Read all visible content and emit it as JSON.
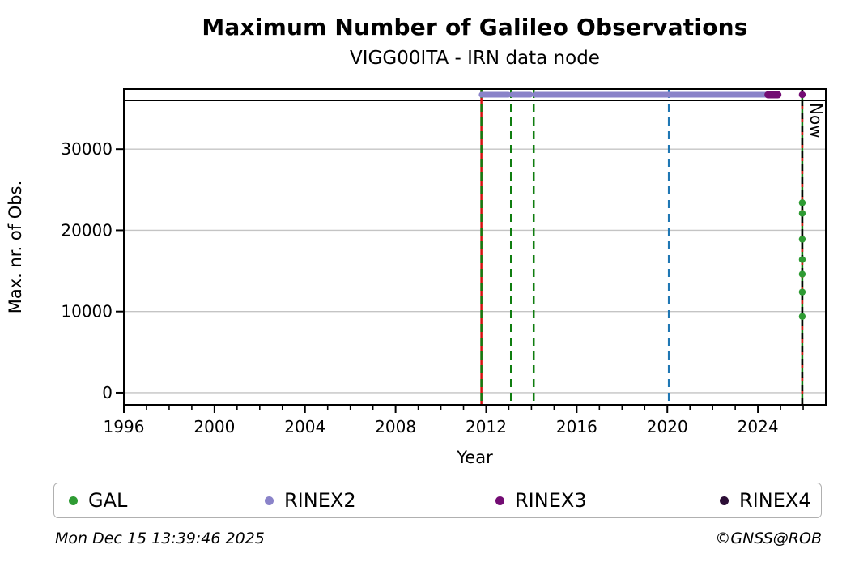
{
  "figure": {
    "title": "Maximum Number of Galileo Observations",
    "subtitle": "VIGG00ITA - IRN data node",
    "footer_left": "Mon Dec 15 13:39:46 2025",
    "footer_right": "©GNSS@ROB"
  },
  "legend": {
    "items": [
      {
        "label": "GAL",
        "color": "#2e9b33"
      },
      {
        "label": "RINEX2",
        "color": "#8a83c9"
      },
      {
        "label": "RINEX3",
        "color": "#730c73"
      },
      {
        "label": "RINEX4",
        "color": "#2c0e36"
      }
    ]
  },
  "chart_data": {
    "type": "scatter",
    "title": "Maximum Number of Galileo Observations",
    "subtitle": "VIGG00ITA - IRN data node",
    "xlabel": "Year",
    "ylabel": "Max. nr. of Obs.",
    "xlim": [
      1996,
      2027
    ],
    "ylim": [
      -1500,
      37400
    ],
    "xticks_major": [
      1996,
      2000,
      2004,
      2008,
      2012,
      2016,
      2020,
      2024
    ],
    "xticks_minor_step": 1,
    "yticks": [
      0,
      10000,
      20000,
      30000
    ],
    "grid": "horizontal-only",
    "grid_color": "#c4c4c4",
    "hline": {
      "value": 36000,
      "color": "#000000"
    },
    "vlines": [
      {
        "x": 2011.79,
        "style": "dashed",
        "colors": [
          "#d61111",
          "#0f7d0f"
        ]
      },
      {
        "x": 2013.1,
        "style": "dashed",
        "colors": [
          "#0f7d0f"
        ]
      },
      {
        "x": 2014.1,
        "style": "dashed",
        "colors": [
          "#0f7d0f"
        ]
      },
      {
        "x": 2020.07,
        "style": "dashed",
        "colors": [
          "#1f77b4"
        ]
      },
      {
        "x": 2025.96,
        "style": "dashed",
        "colors": [
          "#0f7d0f",
          "#d61111",
          "#000000"
        ],
        "label": "Now"
      }
    ],
    "now_label": "Now",
    "series": [
      {
        "name": "GAL",
        "color": "#2e9b33",
        "points": [
          [
            2025.96,
            23400
          ],
          [
            2025.96,
            22100
          ],
          [
            2025.96,
            18900
          ],
          [
            2025.96,
            16400
          ],
          [
            2025.96,
            14600
          ],
          [
            2025.96,
            12400
          ],
          [
            2025.96,
            9400
          ]
        ]
      },
      {
        "name": "RINEX2",
        "color": "#8a83c9",
        "band_value": 36700,
        "band_segments": [
          [
            2011.8,
            2012.98
          ],
          [
            2013.16,
            2013.95
          ],
          [
            2014.16,
            2024.42
          ]
        ]
      },
      {
        "name": "RINEX3",
        "color": "#730c73",
        "band_value": 36700,
        "band_segments": [
          [
            2024.45,
            2024.88
          ]
        ],
        "points": [
          [
            2025.96,
            36700
          ]
        ]
      },
      {
        "name": "RINEX4",
        "color": "#2c0e36",
        "points": []
      }
    ]
  }
}
